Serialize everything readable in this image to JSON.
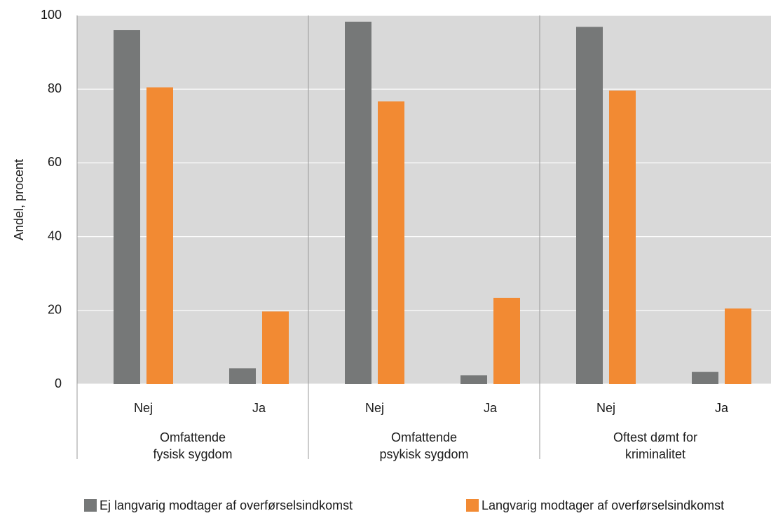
{
  "chart_data": {
    "type": "bar",
    "y_label": "Andel, procent",
    "categories": [
      "Nej",
      "Ja",
      "Nej",
      "Ja",
      "Nej",
      "Ja"
    ],
    "groups": [
      [
        "Omfattende",
        "fysisk sygdom"
      ],
      [
        "Omfattende",
        "psykisk sygdom"
      ],
      [
        "Oftest dømt for",
        "kriminalitet"
      ]
    ],
    "series": [
      {
        "name": "Ej langvarig modtager af overførselsindkomst",
        "color": "#767878",
        "values": [
          96.0,
          4.3,
          98.3,
          2.4,
          96.9,
          3.3
        ]
      },
      {
        "name": "Langvarig modtager af overførselsindkomst",
        "color": "#f28a33",
        "values": [
          80.5,
          19.7,
          76.7,
          23.4,
          79.6,
          20.5
        ]
      }
    ],
    "ylim": [
      0,
      100
    ],
    "yticks": [
      0,
      20,
      40,
      60,
      80,
      100
    ],
    "grid": true,
    "legend": "bottom"
  }
}
